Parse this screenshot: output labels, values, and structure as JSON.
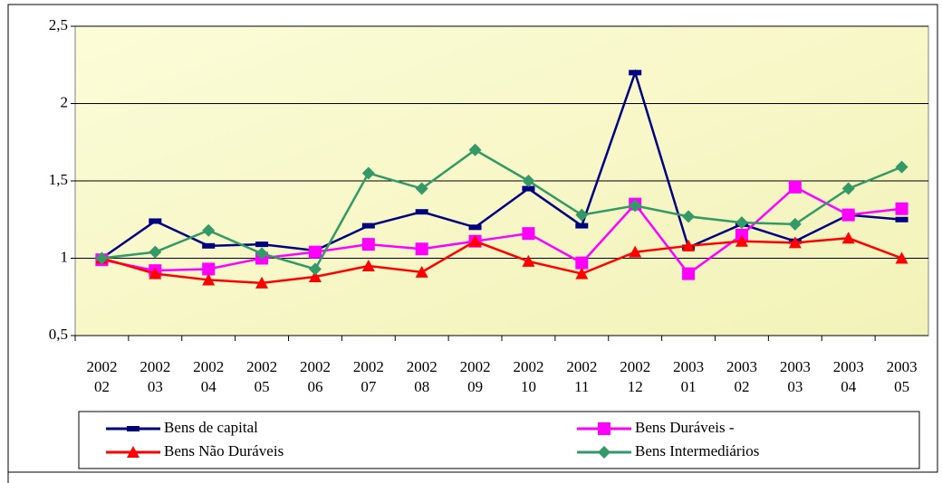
{
  "chart_data": {
    "type": "line",
    "categories": [
      "2002 02",
      "2002 03",
      "2002 04",
      "2002 05",
      "2002 06",
      "2002 07",
      "2002 08",
      "2002 09",
      "2002 10",
      "2002 11",
      "2002 12",
      "2003 01",
      "2003 02",
      "2003 03",
      "2003 04",
      "2003 05"
    ],
    "series": [
      {
        "name": "Bens de capital",
        "color": "#000080",
        "marker": "dash",
        "values": [
          1.0,
          1.24,
          1.08,
          1.09,
          1.05,
          1.21,
          1.3,
          1.2,
          1.45,
          1.21,
          2.2,
          1.07,
          1.22,
          1.11,
          1.28,
          1.25
        ]
      },
      {
        "name": "Bens Duráveis -",
        "color": "#ff00ff",
        "marker": "square",
        "values": [
          0.99,
          0.92,
          0.93,
          1.0,
          1.04,
          1.09,
          1.06,
          1.11,
          1.16,
          0.97,
          1.35,
          0.9,
          1.15,
          1.46,
          1.28,
          1.32
        ]
      },
      {
        "name": "Bens Não Duráveis",
        "color": "#ff0000",
        "marker": "triangle",
        "values": [
          1.0,
          0.9,
          0.86,
          0.84,
          0.88,
          0.95,
          0.91,
          1.11,
          0.98,
          0.9,
          1.04,
          1.08,
          1.11,
          1.1,
          1.13,
          1.0
        ]
      },
      {
        "name": "Bens Intermediários",
        "color": "#339966",
        "marker": "diamond",
        "values": [
          1.0,
          1.04,
          1.18,
          1.03,
          0.93,
          1.55,
          1.45,
          1.7,
          1.5,
          1.28,
          1.34,
          1.27,
          1.23,
          1.22,
          1.45,
          1.59
        ]
      }
    ],
    "ylim": [
      0.5,
      2.5
    ],
    "yticks": [
      {
        "value": 0.5,
        "label": "0,5"
      },
      1,
      {
        "value": 1.5,
        "label": "1,5"
      },
      2,
      {
        "value": 2.5,
        "label": "2,5"
      }
    ],
    "grid": true
  }
}
